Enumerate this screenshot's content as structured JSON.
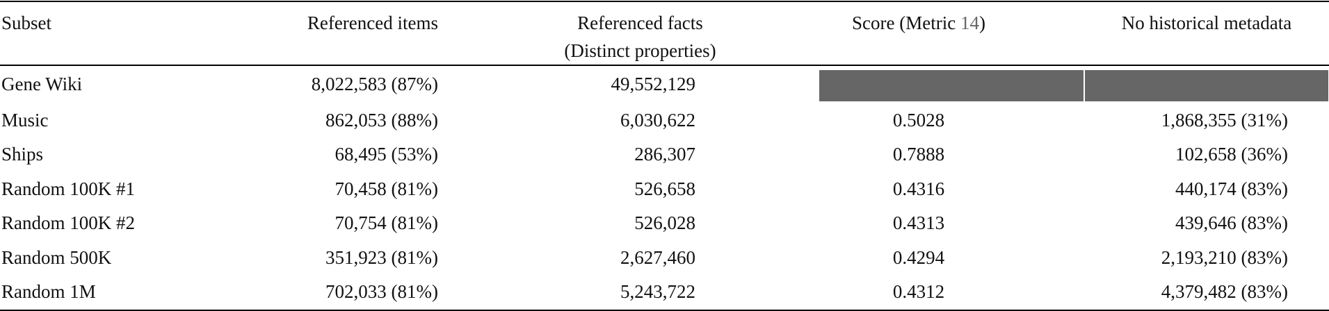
{
  "table": {
    "header": [
      "Subset",
      "Referenced items",
      {
        "line1": "Referenced facts",
        "line2": "(Distinct properties)"
      },
      {
        "before": "Score (Metric",
        "ref": "14",
        "after": ")"
      },
      "No historical metadata"
    ],
    "rows": [
      [
        "Gene Wiki",
        "8,022,583 (87%)",
        "49,552,129",
        null,
        null
      ],
      [
        "Music",
        "862,053 (88%)",
        "6,030,622",
        "0.5028",
        "1,868,355 (31%)"
      ],
      [
        "Ships",
        "68,495 (53%)",
        "286,307",
        "0.7888",
        "102,658 (36%)"
      ],
      [
        "Random 100K #1",
        "70,458 (81%)",
        "526,658",
        "0.4316",
        "440,174 (83%)"
      ],
      [
        "Random 100K #2",
        "70,754 (81%)",
        "526,028",
        "0.4313",
        "439,646 (83%)"
      ],
      [
        "Random 500K",
        "351,923 (81%)",
        "2,627,460",
        "0.4294",
        "2,193,210 (83%)"
      ],
      [
        "Random 1M",
        "702,033 (81%)",
        "5,243,722",
        "0.4312",
        "4,379,482 (83%)"
      ]
    ]
  }
}
